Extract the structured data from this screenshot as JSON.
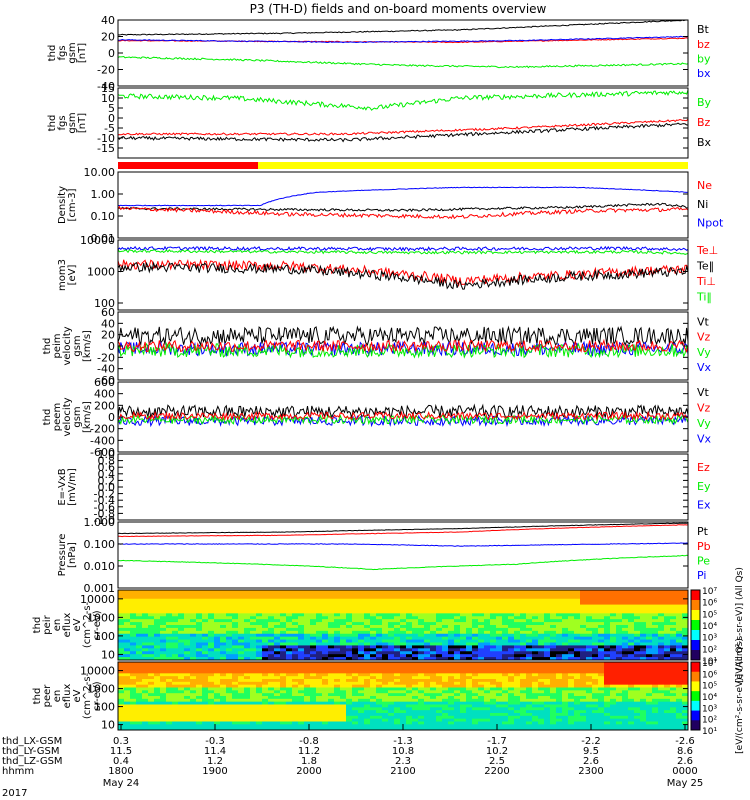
{
  "title": "P3 (TH-D) fields and on-board moments overview",
  "colors": {
    "black": "#000000",
    "red": "#ff0000",
    "green": "#00ee00",
    "blue": "#0000ff",
    "yellow": "#ffff00"
  },
  "colorbars": [
    {
      "label": "[eV/(cm²-s-sr-eV)] (All Qs)",
      "ticks": [
        "10⁷",
        "10⁶",
        "10⁵",
        "10⁴",
        "10³",
        "10²",
        "10¹"
      ]
    },
    {
      "label": "[eV/(cm²-s-sr-eV)] (All Qs)",
      "ticks": [
        "10⁷",
        "10⁶",
        "10⁵",
        "10⁴",
        "10³",
        "10²",
        "10¹"
      ]
    }
  ],
  "time_axis": {
    "rows": [
      {
        "label": "thd_LX-GSM",
        "values": [
          "0.3",
          "-0.3",
          "-0.8",
          "-1.3",
          "-1.7",
          "-2.2",
          "-2.6"
        ]
      },
      {
        "label": "thd_LY-GSM",
        "values": [
          "11.5",
          "11.4",
          "11.2",
          "10.8",
          "10.2",
          "9.5",
          "8.6"
        ]
      },
      {
        "label": "thd_LZ-GSM",
        "values": [
          "0.4",
          "1.2",
          "1.8",
          "2.3",
          "2.5",
          "2.6",
          "2.6"
        ]
      },
      {
        "label": "hhmm",
        "values": [
          "1800",
          "1900",
          "2000",
          "2100",
          "2200",
          "2300",
          "0000"
        ]
      }
    ],
    "year": "2017",
    "dates": [
      {
        "label": "May 24",
        "col": 0
      },
      {
        "label": "May 25",
        "col": 6
      }
    ]
  },
  "chart_data": [
    {
      "type": "line",
      "ylabel": [
        "thd",
        "fgs",
        "gsm",
        "[nT]"
      ],
      "ylim": [
        -40,
        40
      ],
      "ticks": [
        -40,
        -20,
        0,
        20,
        40
      ],
      "legend": [
        {
          "text": "Bt",
          "color": "black"
        },
        {
          "text": "bz",
          "color": "red"
        },
        {
          "text": "by",
          "color": "green"
        },
        {
          "text": "bx",
          "color": "blue"
        }
      ],
      "series": [
        {
          "color": "black",
          "anchors": [
            [
              0,
              22
            ],
            [
              0.3,
              24
            ],
            [
              0.6,
              28
            ],
            [
              1,
              40
            ]
          ],
          "noise": 0.6
        },
        {
          "color": "red",
          "anchors": [
            [
              0,
              15
            ],
            [
              0.3,
              14
            ],
            [
              0.6,
              13
            ],
            [
              1,
              18
            ]
          ],
          "noise": 0.5
        },
        {
          "color": "blue",
          "anchors": [
            [
              0,
              16
            ],
            [
              0.4,
              13
            ],
            [
              0.7,
              15
            ],
            [
              1,
              20
            ]
          ],
          "noise": 0.5
        },
        {
          "color": "green",
          "anchors": [
            [
              0,
              -5
            ],
            [
              0.2,
              -8
            ],
            [
              0.5,
              -15
            ],
            [
              0.7,
              -17
            ],
            [
              1,
              -13
            ]
          ],
          "noise": 1.0
        }
      ]
    },
    {
      "type": "line",
      "ylabel": [
        "thd",
        "fgs",
        "gsm",
        "[nT]"
      ],
      "ylim": [
        -20,
        15
      ],
      "ticks": [
        -15,
        -10,
        -5,
        0,
        5,
        10,
        15
      ],
      "legend": [
        {
          "text": "By",
          "color": "green"
        },
        {
          "text": "Bz",
          "color": "red"
        },
        {
          "text": "Bx",
          "color": "black"
        }
      ],
      "series": [
        {
          "color": "green",
          "anchors": [
            [
              0,
              11
            ],
            [
              0.2,
              10
            ],
            [
              0.45,
              5
            ],
            [
              0.6,
              10
            ],
            [
              1,
              13
            ]
          ],
          "noise": 1.2
        },
        {
          "color": "red",
          "anchors": [
            [
              0,
              -8
            ],
            [
              0.4,
              -8
            ],
            [
              0.7,
              -5
            ],
            [
              1,
              -1
            ]
          ],
          "noise": 0.5
        },
        {
          "color": "black",
          "anchors": [
            [
              0,
              -10
            ],
            [
              0.4,
              -11
            ],
            [
              0.7,
              -7
            ],
            [
              1,
              -3
            ]
          ],
          "noise": 0.8
        }
      ]
    },
    {
      "type": "line",
      "ylabel": [
        "Density",
        "[cm-3]"
      ],
      "ylog": true,
      "ylim": [
        0.01,
        10
      ],
      "ticks": [
        "0.01",
        "0.10",
        "1.00",
        "10.00"
      ],
      "legend": [
        {
          "text": "Ne",
          "color": "red"
        },
        {
          "text": "Ni",
          "color": "black"
        },
        {
          "text": "Npot",
          "color": "blue"
        }
      ],
      "series": [
        {
          "color": "blue",
          "anchors": [
            [
              0,
              0.3
            ],
            [
              0.25,
              0.3
            ],
            [
              0.35,
              1.2
            ],
            [
              0.6,
              2.0
            ],
            [
              0.8,
              2.0
            ],
            [
              1,
              1.2
            ]
          ],
          "noise": 0.03
        },
        {
          "color": "black",
          "anchors": [
            [
              0,
              0.22
            ],
            [
              0.5,
              0.18
            ],
            [
              0.8,
              0.25
            ],
            [
              0.95,
              0.35
            ],
            [
              1,
              0.25
            ]
          ],
          "noise": 0.12
        },
        {
          "color": "red",
          "anchors": [
            [
              0,
              0.22
            ],
            [
              0.3,
              0.12
            ],
            [
              0.6,
              0.09
            ],
            [
              0.85,
              0.18
            ],
            [
              1,
              0.2
            ]
          ],
          "noise": 0.2
        }
      ]
    },
    {
      "type": "line",
      "ylabel": [
        "mom3",
        "[eV]"
      ],
      "ylog": true,
      "ylim": [
        60,
        10000
      ],
      "ticks": [
        "100",
        "1000",
        "10000"
      ],
      "legend": [
        {
          "text": "Te⊥",
          "color": "red"
        },
        {
          "text": "Te‖",
          "color": "black"
        },
        {
          "text": "Ti⊥",
          "color": "red"
        },
        {
          "text": "Ti‖",
          "color": "green"
        }
      ],
      "series": [
        {
          "color": "blue",
          "anchors": [
            [
              0,
              5500
            ],
            [
              0.5,
              5200
            ],
            [
              0.9,
              5500
            ],
            [
              1,
              5000
            ]
          ],
          "noise": 0.12
        },
        {
          "color": "green",
          "anchors": [
            [
              0,
              4500
            ],
            [
              0.5,
              4000
            ],
            [
              0.9,
              4200
            ],
            [
              1,
              3800
            ]
          ],
          "noise": 0.1
        },
        {
          "color": "red",
          "anchors": [
            [
              0,
              1700
            ],
            [
              0.3,
              1500
            ],
            [
              0.6,
              500
            ],
            [
              0.8,
              800
            ],
            [
              1,
              1200
            ]
          ],
          "noise": 0.35
        },
        {
          "color": "black",
          "anchors": [
            [
              0,
              1400
            ],
            [
              0.3,
              1200
            ],
            [
              0.6,
              350
            ],
            [
              0.8,
              700
            ],
            [
              1,
              1000
            ]
          ],
          "noise": 0.35
        }
      ]
    },
    {
      "type": "line",
      "ylabel": [
        "thd",
        "peim",
        "velocity",
        "gsm",
        "[km/s]"
      ],
      "ylim": [
        -60,
        60
      ],
      "ticks": [
        -60,
        -40,
        -20,
        0,
        20,
        40,
        60
      ],
      "legend": [
        {
          "text": "Vt",
          "color": "black"
        },
        {
          "text": "Vz",
          "color": "red"
        },
        {
          "text": "Vy",
          "color": "green"
        },
        {
          "text": "Vx",
          "color": "blue"
        }
      ],
      "series": [
        {
          "color": "black",
          "anchors": [
            [
              0,
              18
            ],
            [
              1,
              18
            ]
          ],
          "noise": 16
        },
        {
          "color": "blue",
          "anchors": [
            [
              0,
              -5
            ],
            [
              1,
              -5
            ]
          ],
          "noise": 12
        },
        {
          "color": "green",
          "anchors": [
            [
              0,
              -8
            ],
            [
              1,
              -8
            ]
          ],
          "noise": 12
        },
        {
          "color": "red",
          "anchors": [
            [
              0,
              0
            ],
            [
              1,
              0
            ]
          ],
          "noise": 10
        }
      ]
    },
    {
      "type": "line",
      "ylabel": [
        "thd",
        "peem",
        "velocity",
        "gsm",
        "[km/s]"
      ],
      "ylim": [
        -600,
        600
      ],
      "ticks": [
        -600,
        -400,
        -200,
        0,
        200,
        400,
        600
      ],
      "legend": [
        {
          "text": "Vt",
          "color": "black"
        },
        {
          "text": "Vz",
          "color": "red"
        },
        {
          "text": "Vy",
          "color": "green"
        },
        {
          "text": "Vx",
          "color": "blue"
        }
      ],
      "series": [
        {
          "color": "black",
          "anchors": [
            [
              0,
              90
            ],
            [
              1,
              90
            ]
          ],
          "noise": 110
        },
        {
          "color": "blue",
          "anchors": [
            [
              0,
              -70
            ],
            [
              1,
              -60
            ]
          ],
          "noise": 80
        },
        {
          "color": "green",
          "anchors": [
            [
              0,
              -50
            ],
            [
              1,
              -40
            ]
          ],
          "noise": 70
        },
        {
          "color": "red",
          "anchors": [
            [
              0,
              20
            ],
            [
              1,
              20
            ]
          ],
          "noise": 60
        }
      ]
    },
    {
      "type": "line",
      "ylabel": [
        "E=-VxB",
        "[mV/m]"
      ],
      "ylim": [
        -1,
        1
      ],
      "ticks": [
        "-1.0",
        "-0.8",
        "-0.6",
        "-0.4",
        "-0.2",
        "0.0",
        "0.2",
        "0.4",
        "0.6",
        "0.8",
        "1.0"
      ],
      "legend": [
        {
          "text": "Ez",
          "color": "red"
        },
        {
          "text": "Ey",
          "color": "green"
        },
        {
          "text": "Ex",
          "color": "blue"
        }
      ],
      "series": []
    },
    {
      "type": "line",
      "ylabel": [
        "Pressure",
        "[nPa]"
      ],
      "ylog": true,
      "ylim": [
        0.001,
        1
      ],
      "ticks": [
        "0.001",
        "0.010",
        "0.100",
        "1.000"
      ],
      "legend": [
        {
          "text": "Pt",
          "color": "black"
        },
        {
          "text": "Pb",
          "color": "red"
        },
        {
          "text": "Pe",
          "color": "green"
        },
        {
          "text": "Pi",
          "color": "blue"
        }
      ],
      "series": [
        {
          "color": "black",
          "anchors": [
            [
              0,
              0.3
            ],
            [
              0.3,
              0.35
            ],
            [
              0.6,
              0.5
            ],
            [
              1,
              0.9
            ]
          ],
          "noise": 0.02
        },
        {
          "color": "red",
          "anchors": [
            [
              0,
              0.22
            ],
            [
              0.3,
              0.25
            ],
            [
              0.6,
              0.35
            ],
            [
              1,
              0.75
            ]
          ],
          "noise": 0.02
        },
        {
          "color": "blue",
          "anchors": [
            [
              0,
              0.1
            ],
            [
              0.4,
              0.1
            ],
            [
              0.6,
              0.08
            ],
            [
              1,
              0.11
            ]
          ],
          "noise": 0.03
        },
        {
          "color": "green",
          "anchors": [
            [
              0,
              0.018
            ],
            [
              0.25,
              0.012
            ],
            [
              0.45,
              0.007
            ],
            [
              0.7,
              0.012
            ],
            [
              1,
              0.03
            ]
          ],
          "noise": 0.03
        }
      ]
    },
    {
      "type": "heatmap",
      "ylabel": [
        "thd",
        "peir",
        "en",
        "eflux",
        "eV",
        "(cm^2-s-",
        "sr-eV)"
      ],
      "ylog": true,
      "ylim": [
        5,
        30000
      ],
      "ticks": [
        "10",
        "100",
        "1000",
        "10000"
      ]
    },
    {
      "type": "heatmap",
      "ylabel": [
        "thd",
        "peer",
        "en",
        "eflux",
        "eV",
        "(cm^2-s-",
        "sr-eV)"
      ],
      "ylog": true,
      "ylim": [
        5,
        30000
      ],
      "ticks": [
        "10",
        "100",
        "1000",
        "10000"
      ]
    }
  ]
}
